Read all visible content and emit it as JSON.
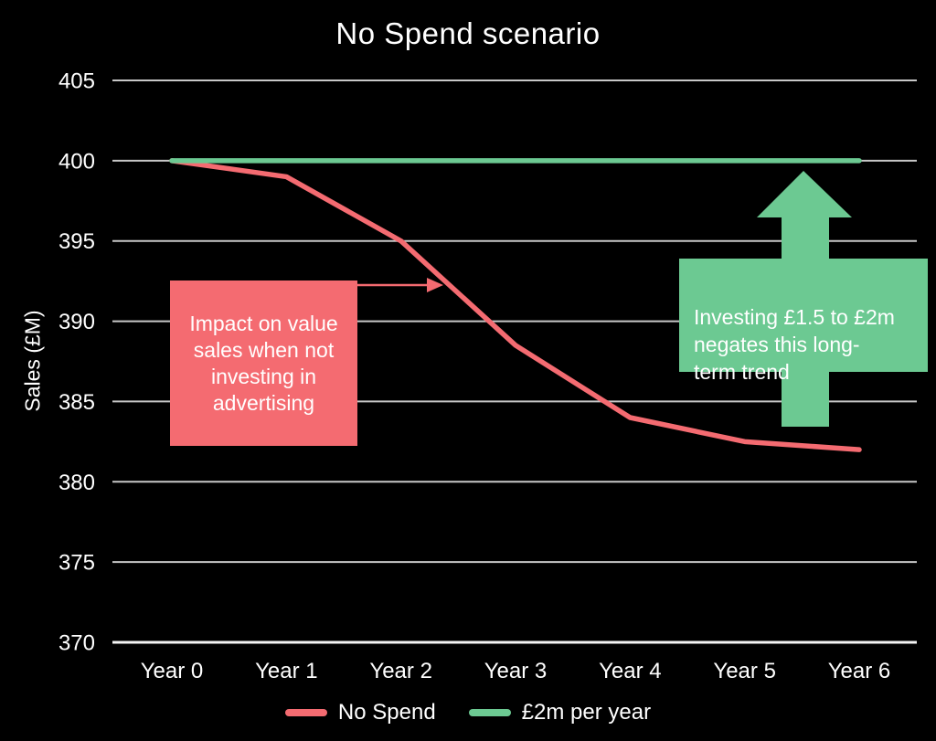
{
  "title": "No Spend scenario",
  "colors": {
    "red": "#F46B71",
    "green": "#6CC992",
    "gridline": "#C8C8C8",
    "axis_line": "#F5F5F5",
    "text": "#FFFFFF",
    "background": "#000000"
  },
  "y_axis": {
    "label": "Sales (£M)"
  },
  "chart_data": {
    "type": "line",
    "title": "No Spend scenario",
    "categories": [
      "Year 0",
      "Year 1",
      "Year 2",
      "Year 3",
      "Year 4",
      "Year 5",
      "Year 6"
    ],
    "series": [
      {
        "name": "No Spend",
        "color": "#F46B71",
        "values": [
          400,
          399,
          395,
          388.5,
          384,
          382.5,
          382
        ]
      },
      {
        "name": "£2m per year",
        "color": "#6CC992",
        "values": [
          400,
          400,
          400,
          400,
          400,
          400,
          400
        ]
      }
    ],
    "xlabel": "",
    "ylabel": "Sales (£M)",
    "ylim": [
      370,
      405
    ],
    "yticks": [
      370,
      375,
      380,
      385,
      390,
      395,
      400,
      405
    ],
    "grid": true,
    "legend_position": "bottom"
  },
  "annotations": {
    "no_spend_note": {
      "lines": [
        "Impact on value",
        "sales when not",
        "investing in",
        "advertising"
      ]
    },
    "invest_note": {
      "lines": [
        "Investing £1.5 to £2m",
        "negates this long-",
        "term trend"
      ]
    }
  },
  "legend": {
    "items": [
      {
        "label": "No Spend",
        "color": "#F46B71"
      },
      {
        "label": "£2m per year",
        "color": "#6CC992"
      }
    ]
  }
}
